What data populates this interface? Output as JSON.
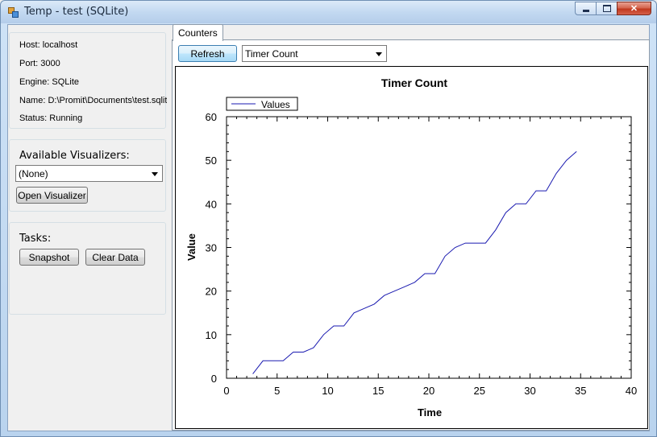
{
  "window": {
    "title": "Temp - test (SQLite)"
  },
  "server_info": {
    "host": "Host: localhost",
    "port": "Port: 3000",
    "engine": "Engine: SQLite",
    "name": "Name: D:\\Promit\\Documents\\test.sqlite",
    "status": "Status: Running"
  },
  "visualizers": {
    "label": "Available Visualizers:",
    "selected": "(None)",
    "open_button": "Open Visualizer"
  },
  "tasks": {
    "label": "Tasks:",
    "snapshot_button": "Snapshot",
    "clear_button": "Clear Data"
  },
  "tabs": [
    {
      "label": "Counters",
      "selected": true
    }
  ],
  "counters": {
    "refresh_button": "Refresh",
    "selected_counter": "Timer Count"
  },
  "colors": {
    "series": "#1a1ab0",
    "chart_border": "#000000"
  },
  "chart_data": {
    "type": "line",
    "title": "Timer Count",
    "xlabel": "Time",
    "ylabel": "Value",
    "xlim": [
      0,
      40
    ],
    "ylim": [
      0,
      60
    ],
    "xticks": [
      0,
      5,
      10,
      15,
      20,
      25,
      30,
      35,
      40
    ],
    "yticks": [
      0,
      10,
      20,
      30,
      40,
      50,
      60
    ],
    "grid": false,
    "legend": "top-left",
    "series": [
      {
        "name": "Values",
        "x": [
          2.6,
          3.6,
          5.6,
          6.6,
          7.6,
          8.6,
          9.6,
          10.6,
          11.6,
          12.6,
          13.6,
          14.6,
          15.6,
          16.6,
          17.6,
          18.6,
          19.6,
          20.6,
          21.6,
          22.6,
          23.6,
          24.6,
          25.6,
          26.6,
          27.6,
          28.6,
          29.6,
          30.6,
          31.6,
          32.6,
          33.6,
          34.6
        ],
        "y": [
          1,
          4,
          4,
          6,
          6,
          7,
          10,
          12,
          12,
          15,
          16,
          17,
          19,
          20,
          21,
          22,
          24,
          24,
          28,
          30,
          31,
          31,
          31,
          34,
          38,
          40,
          40,
          43,
          43,
          47,
          50,
          52
        ]
      }
    ]
  }
}
